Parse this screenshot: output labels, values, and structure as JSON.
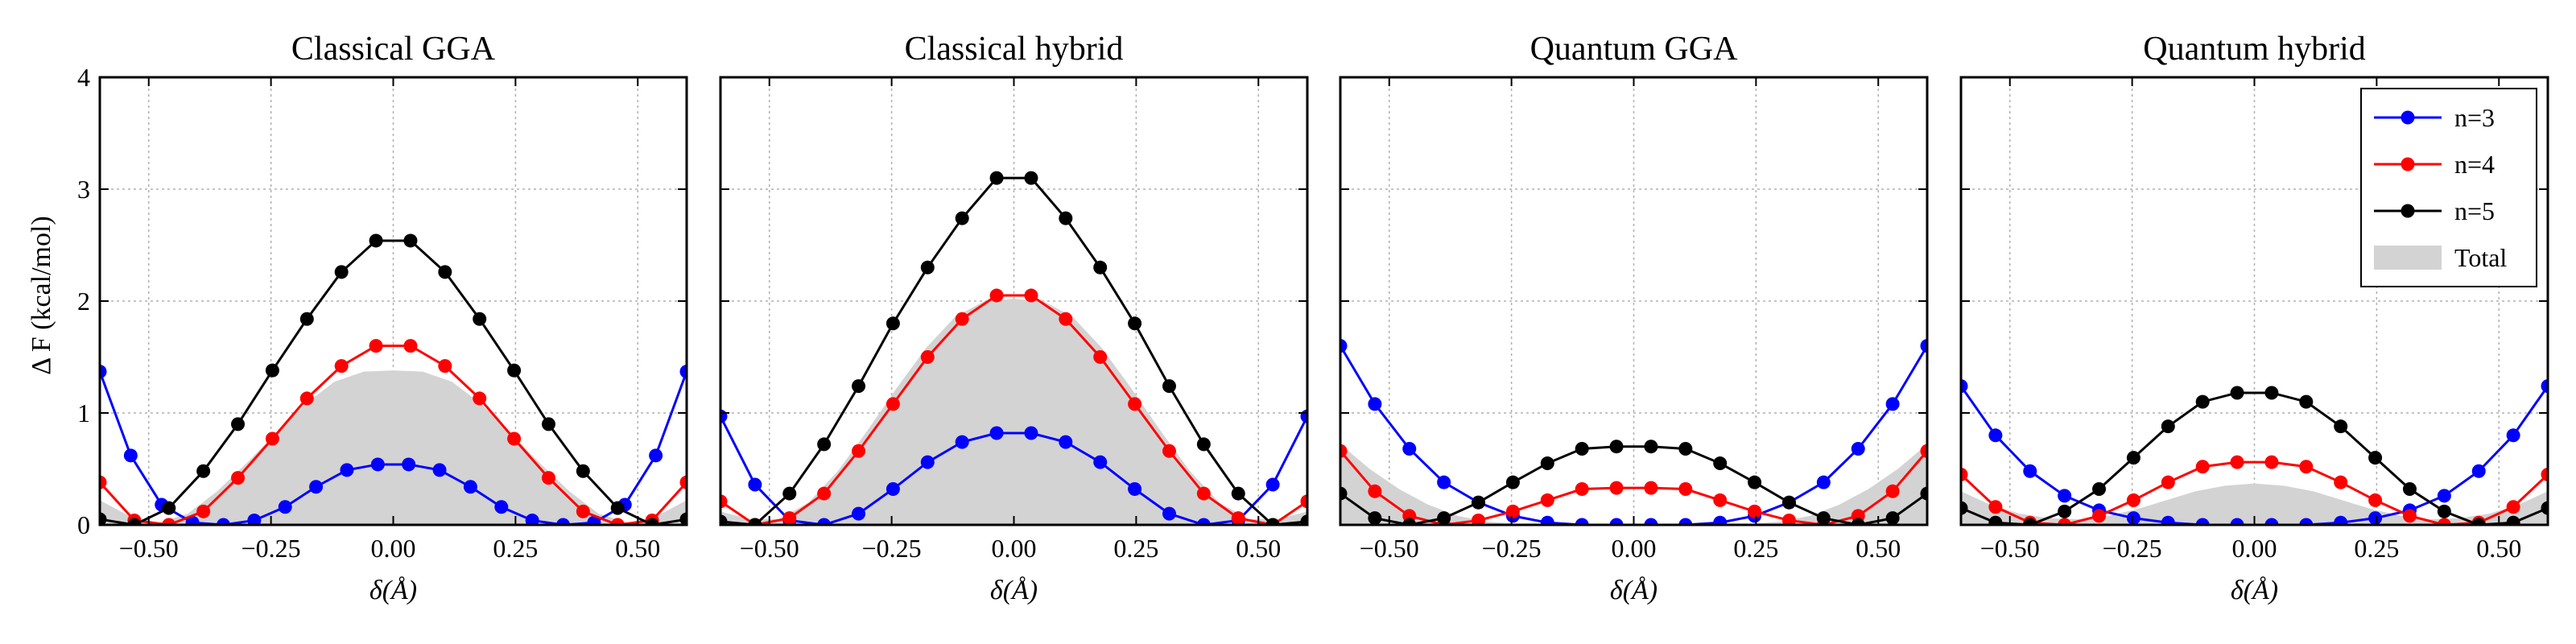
{
  "chart_data": {
    "type": "line",
    "ylabel": "Δ F (kcal/mol)",
    "xlabel": "δ(Å)",
    "xlim": [
      -0.6,
      0.6
    ],
    "ylim": [
      0,
      4
    ],
    "xticks": [
      -0.5,
      -0.25,
      0.0,
      0.25,
      0.5
    ],
    "xtick_labels": [
      "−0.50",
      "−0.25",
      "0.00",
      "0.25",
      "0.50"
    ],
    "yticks": [
      0,
      1,
      2,
      3,
      4
    ],
    "ytick_labels": [
      "0",
      "1",
      "2",
      "3",
      "4"
    ],
    "grid": true,
    "legend": {
      "position": "top-right",
      "panel": 3,
      "entries": [
        {
          "label": "n=3",
          "kind": "line-marker",
          "color": "#0000ff"
        },
        {
          "label": "n=4",
          "kind": "line-marker",
          "color": "#ff0000"
        },
        {
          "label": "n=5",
          "kind": "line-marker",
          "color": "#000000"
        },
        {
          "label": "Total",
          "kind": "area",
          "color": "#d3d3d3"
        }
      ]
    },
    "x": [
      -0.6,
      -0.54,
      -0.48,
      -0.42,
      -0.36,
      -0.3,
      -0.24,
      -0.18,
      -0.12,
      -0.06,
      0.0,
      0.06,
      0.12,
      0.18,
      0.24,
      0.3,
      0.36,
      0.42,
      0.48,
      0.54,
      0.6
    ],
    "panels": [
      {
        "title": "Classical GGA",
        "series": [
          {
            "name": "n=3",
            "color": "#0000ff",
            "values": [
              1.37,
              0.62,
              0.18,
              0.02,
              0.0,
              0.04,
              0.16,
              0.34,
              0.49,
              0.54,
              0.54,
              0.49,
              0.34,
              0.16,
              0.04,
              0.0,
              0.02,
              0.18,
              0.62,
              1.37
            ]
          },
          {
            "name": "n=4",
            "color": "#ff0000",
            "values": [
              0.38,
              0.04,
              0.0,
              0.12,
              0.42,
              0.77,
              1.13,
              1.42,
              1.6,
              1.6,
              1.42,
              1.13,
              0.77,
              0.42,
              0.12,
              0.0,
              0.04,
              0.38
            ]
          },
          {
            "name": "n=5",
            "color": "#000000",
            "values": [
              0.05,
              0.0,
              0.15,
              0.48,
              0.9,
              1.38,
              1.84,
              2.26,
              2.54,
              2.54,
              2.26,
              1.84,
              1.38,
              0.9,
              0.48,
              0.15,
              0.0,
              0.05
            ]
          }
        ],
        "total": [
          0.22,
          0.08,
          0.02,
          0.1,
          0.3,
          0.55,
          0.82,
          1.08,
          1.28,
          1.37,
          1.38,
          1.37,
          1.28,
          1.08,
          0.82,
          0.55,
          0.3,
          0.1,
          0.02,
          0.08,
          0.22
        ]
      },
      {
        "title": "Classical hybrid",
        "series": [
          {
            "name": "n=3",
            "color": "#0000ff",
            "values": [
              0.97,
              0.36,
              0.04,
              0.0,
              0.1,
              0.32,
              0.56,
              0.74,
              0.82,
              0.82,
              0.74,
              0.56,
              0.32,
              0.1,
              0.0,
              0.04,
              0.36,
              0.97
            ]
          },
          {
            "name": "n=4",
            "color": "#ff0000",
            "values": [
              0.21,
              0.0,
              0.06,
              0.28,
              0.66,
              1.08,
              1.5,
              1.84,
              2.05,
              2.05,
              1.84,
              1.5,
              1.08,
              0.66,
              0.28,
              0.06,
              0.0,
              0.21
            ]
          },
          {
            "name": "n=5",
            "color": "#000000",
            "values": [
              0.03,
              0.0,
              0.28,
              0.72,
              1.24,
              1.8,
              2.3,
              2.74,
              3.1,
              3.1,
              2.74,
              2.3,
              1.8,
              1.24,
              0.72,
              0.28,
              0.0,
              0.03
            ]
          }
        ],
        "total": [
          0.12,
          0.05,
          0.05,
          0.2,
          0.48,
          0.84,
          1.22,
          1.58,
          1.86,
          2.0,
          2.02,
          2.0,
          1.86,
          1.58,
          1.22,
          0.84,
          0.48,
          0.2,
          0.05,
          0.05,
          0.12
        ]
      },
      {
        "title": "Quantum GGA",
        "series": [
          {
            "name": "n=3",
            "color": "#0000ff",
            "values": [
              1.6,
              1.08,
              0.68,
              0.38,
              0.2,
              0.08,
              0.02,
              0.0,
              0.0,
              0.0,
              0.0,
              0.02,
              0.08,
              0.2,
              0.38,
              0.68,
              1.08,
              1.6
            ]
          },
          {
            "name": "n=4",
            "color": "#ff0000",
            "values": [
              0.66,
              0.3,
              0.08,
              0.0,
              0.04,
              0.12,
              0.22,
              0.32,
              0.33,
              0.33,
              0.32,
              0.22,
              0.12,
              0.04,
              0.0,
              0.08,
              0.3,
              0.66
            ]
          },
          {
            "name": "n=5",
            "color": "#000000",
            "values": [
              0.28,
              0.06,
              0.0,
              0.06,
              0.2,
              0.38,
              0.55,
              0.68,
              0.7,
              0.7,
              0.68,
              0.55,
              0.38,
              0.2,
              0.06,
              0.0,
              0.06,
              0.28
            ]
          }
        ],
        "total": [
          0.72,
          0.5,
          0.32,
          0.18,
          0.08,
          0.03,
          0.01,
          0.01,
          0.01,
          0.01,
          0.01,
          0.01,
          0.01,
          0.01,
          0.01,
          0.03,
          0.08,
          0.18,
          0.32,
          0.5,
          0.72
        ]
      },
      {
        "title": "Quantum hybrid",
        "series": [
          {
            "name": "n=3",
            "color": "#0000ff",
            "values": [
              1.24,
              0.8,
              0.48,
              0.26,
              0.13,
              0.06,
              0.02,
              0.0,
              0.0,
              0.0,
              0.0,
              0.02,
              0.06,
              0.13,
              0.26,
              0.48,
              0.8,
              1.24
            ]
          },
          {
            "name": "n=4",
            "color": "#ff0000",
            "values": [
              0.45,
              0.16,
              0.02,
              0.0,
              0.08,
              0.22,
              0.38,
              0.52,
              0.56,
              0.56,
              0.52,
              0.38,
              0.22,
              0.08,
              0.0,
              0.02,
              0.16,
              0.45
            ]
          },
          {
            "name": "n=5",
            "color": "#000000",
            "values": [
              0.15,
              0.02,
              0.0,
              0.12,
              0.32,
              0.6,
              0.88,
              1.1,
              1.18,
              1.18,
              1.1,
              0.88,
              0.6,
              0.32,
              0.12,
              0.0,
              0.02,
              0.15
            ]
          }
        ],
        "total": [
          0.3,
          0.18,
          0.1,
          0.06,
          0.05,
          0.08,
          0.14,
          0.22,
          0.3,
          0.35,
          0.37,
          0.35,
          0.3,
          0.22,
          0.14,
          0.08,
          0.05,
          0.06,
          0.1,
          0.18,
          0.3
        ]
      }
    ]
  }
}
